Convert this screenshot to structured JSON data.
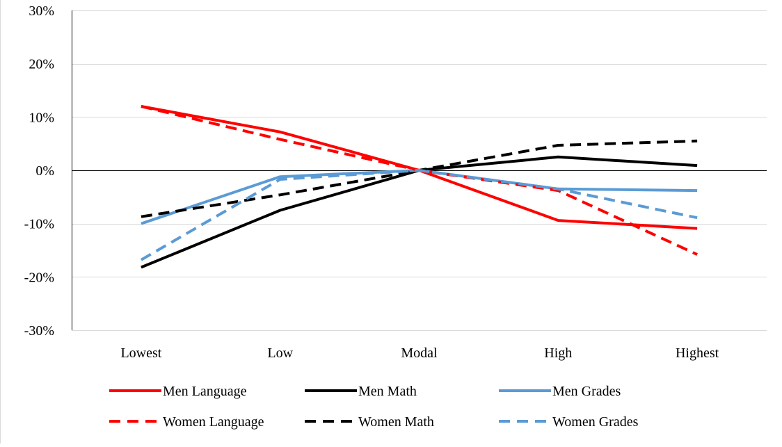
{
  "chart_data": {
    "type": "line",
    "title": "",
    "xlabel": "",
    "ylabel": "",
    "categories": [
      "Lowest",
      "Low",
      "Modal",
      "High",
      "Highest"
    ],
    "ylim": [
      -30,
      30
    ],
    "y_ticks": [
      30,
      20,
      10,
      0,
      -10,
      -20,
      -30
    ],
    "y_tick_labels": [
      "30%",
      "20%",
      "10%",
      "0%",
      "-10%",
      "-20%",
      "-30%"
    ],
    "grid": true,
    "legend_position": "bottom",
    "series": [
      {
        "name": "Men Language",
        "values": [
          12,
          7.2,
          0,
          -9.4,
          -10.9
        ],
        "color": "#ff0000",
        "dash": "solid"
      },
      {
        "name": "Men Math",
        "values": [
          -18.2,
          -7.5,
          0,
          2.5,
          0.9
        ],
        "color": "#000000",
        "dash": "solid"
      },
      {
        "name": "Men Grades",
        "values": [
          -10,
          -1.2,
          0,
          -3.5,
          -3.8
        ],
        "color": "#5b9bd5",
        "dash": "solid"
      },
      {
        "name": "Women Language",
        "values": [
          12,
          5.8,
          0,
          -3.8,
          -15.8
        ],
        "color": "#ff0000",
        "dash": "dashed"
      },
      {
        "name": "Women Math",
        "values": [
          -8.7,
          -4.6,
          0,
          4.7,
          5.5
        ],
        "color": "#000000",
        "dash": "dashed"
      },
      {
        "name": "Women Grades",
        "values": [
          -16.8,
          -1.7,
          0,
          -3.5,
          -8.9
        ],
        "color": "#5b9bd5",
        "dash": "dashed"
      }
    ]
  }
}
